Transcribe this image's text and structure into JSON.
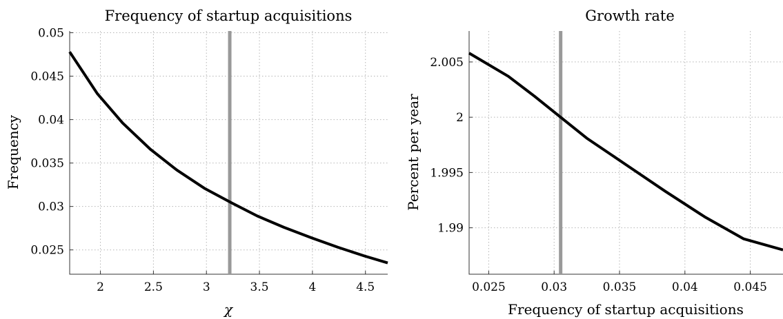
{
  "chart_data": [
    {
      "type": "line",
      "title": "Frequency of startup acquisitions",
      "xlabel": "χ",
      "ylabel": "Frequency",
      "xlim": [
        1.71,
        4.71
      ],
      "ylim": [
        0.0222,
        0.0502
      ],
      "xticks": [
        2,
        2.5,
        3,
        3.5,
        4,
        4.5
      ],
      "xtick_labels": [
        "2",
        "2.5",
        "3",
        "3.5",
        "4",
        "4.5"
      ],
      "yticks": [
        0.025,
        0.03,
        0.035,
        0.04,
        0.045,
        0.05
      ],
      "ytick_labels": [
        "0.025",
        "0.03",
        "0.035",
        "0.04",
        "0.045",
        "0.05"
      ],
      "grid": true,
      "marker_line": {
        "x": 3.22,
        "color": "#999999"
      },
      "series": [
        {
          "color": "#000000",
          "x": [
            1.71,
            1.97,
            2.21,
            2.47,
            2.72,
            2.98,
            3.24,
            3.48,
            3.73,
            3.99,
            4.24,
            4.49,
            4.71
          ],
          "y": [
            0.0478,
            0.043,
            0.0396,
            0.0366,
            0.0342,
            0.0321,
            0.0304,
            0.0289,
            0.0276,
            0.0264,
            0.0253,
            0.0243,
            0.0235
          ]
        }
      ]
    },
    {
      "type": "line",
      "title": "Growth rate",
      "xlabel": "Frequency of startup acquisitions",
      "ylabel": "Percent per year",
      "xlim": [
        0.0235,
        0.0475
      ],
      "ylim": [
        1.9858,
        2.0078
      ],
      "xticks": [
        0.025,
        0.03,
        0.035,
        0.04,
        0.045
      ],
      "xtick_labels": [
        "0.025",
        "0.03",
        "0.035",
        "0.04",
        "0.045"
      ],
      "yticks": [
        1.99,
        1.995,
        2.0,
        2.005
      ],
      "ytick_labels": [
        "1.99",
        "1.995",
        "2",
        "2.005"
      ],
      "grid": true,
      "marker_line": {
        "x": 0.0305,
        "color": "#999999"
      },
      "series": [
        {
          "color": "#000000",
          "x": [
            0.0235,
            0.0265,
            0.0285,
            0.0305,
            0.0325,
            0.0355,
            0.0385,
            0.0415,
            0.0445,
            0.0475
          ],
          "y": [
            2.0058,
            2.0037,
            2.0019,
            2.0,
            1.9981,
            1.9957,
            1.9933,
            1.991,
            1.989,
            1.988
          ]
        }
      ]
    }
  ]
}
